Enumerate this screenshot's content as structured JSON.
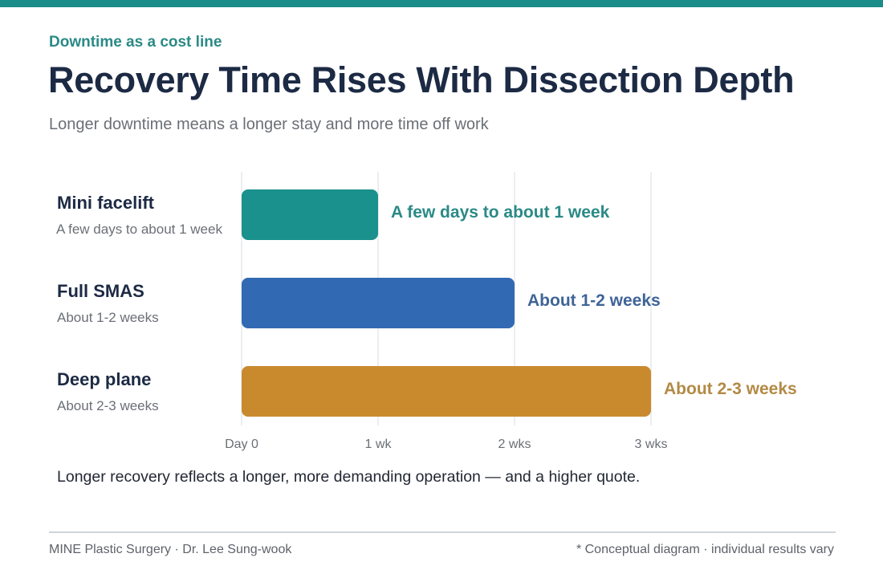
{
  "header": {
    "eyebrow": "Downtime as a cost line",
    "title": "Recovery Time Rises With Dissection Depth",
    "subtitle": "Longer downtime means a longer stay and more time off work"
  },
  "caption": "Longer recovery reflects a longer, more demanding operation — and a higher quote.",
  "footer": {
    "left": "MINE Plastic Surgery · Dr. Lee Sung-wook",
    "right": "* Conceptual diagram · individual results vary"
  },
  "chart_data": {
    "type": "bar",
    "orientation": "horizontal",
    "unit": "weeks",
    "xlim": [
      0,
      3
    ],
    "ticks": [
      {
        "value": 0,
        "label": "Day 0"
      },
      {
        "value": 1,
        "label": "1 wk"
      },
      {
        "value": 2,
        "label": "2 wks"
      },
      {
        "value": 3,
        "label": "3 wks"
      }
    ],
    "grid": true,
    "categories": [
      "Mini facelift",
      "Full SMAS",
      "Deep plane"
    ],
    "descriptions": [
      "A few days to about 1 week",
      "About 1-2 weeks",
      "About 2-3 weeks"
    ],
    "values": [
      1,
      2,
      3
    ],
    "value_labels": [
      "A few days to about 1 week",
      "About 1-2 weeks",
      "About 2-3 weeks"
    ],
    "colors": [
      "#1a918c",
      "#3269b3",
      "#c98a2e"
    ],
    "label_colors": [
      "#2a8a86",
      "#3f6497",
      "#b38a45"
    ]
  }
}
